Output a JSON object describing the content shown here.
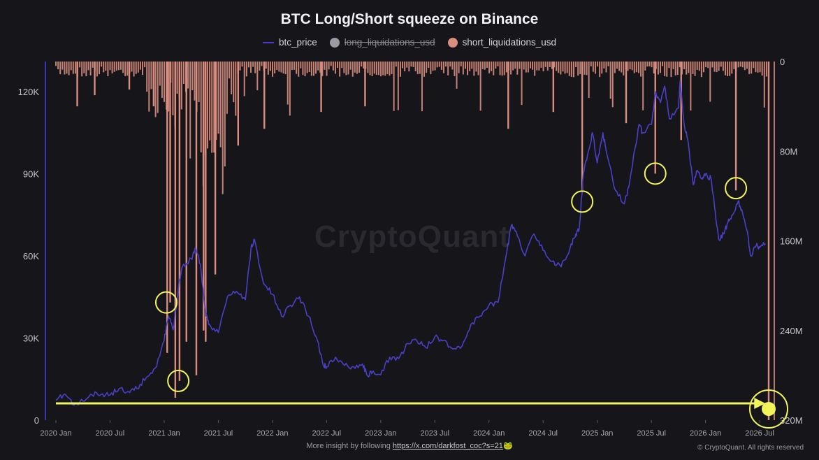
{
  "chart_data": {
    "type": "line",
    "title": "BTC Long/Short squeeze on Binance",
    "series": [
      {
        "name": "btc_price",
        "color": "#4a40c8",
        "axis": "left"
      },
      {
        "name": "long_liquidations_usd",
        "color": "#9b9ba3",
        "hidden": true
      },
      {
        "name": "short_liquidations_usd",
        "color": "#d98e80",
        "axis": "right",
        "type": "bar"
      }
    ],
    "left_axis": {
      "ticks": [
        "0",
        "30K",
        "60K",
        "90K",
        "120K"
      ],
      "values": [
        0,
        30000,
        60000,
        90000,
        120000
      ],
      "min": 0,
      "max": 131000
    },
    "right_axis": {
      "ticks": [
        "0",
        "80M",
        "160M",
        "240M",
        "320M"
      ],
      "values": [
        0,
        80,
        160,
        240,
        320
      ],
      "min": 0,
      "max": 320,
      "inverted": true
    },
    "x_axis": {
      "ticks": [
        "2020 Jan",
        "2020 Jul",
        "2021 Jan",
        "2021 Jul",
        "2022 Jan",
        "2022 Jul",
        "2023 Jan",
        "2023 Jul",
        "2024 Jan",
        "2024 Jul",
        "2025 Jan",
        "2025 Jul",
        "2026 Jan",
        "2026 Jul"
      ],
      "tick_values": [
        "2020-01",
        "2020-07",
        "2021-01",
        "2021-07",
        "2022-01",
        "2022-07",
        "2023-01",
        "2023-07",
        "2024-01",
        "2024-07",
        "2025-01",
        "2025-07",
        "2026-01",
        "2026-07"
      ],
      "min": "2020-01",
      "max": "2026-08"
    },
    "btc_price_points": [
      [
        "2020-01",
        7200
      ],
      [
        "2020-02",
        9500
      ],
      [
        "2020-03",
        5500
      ],
      [
        "2020-04",
        7000
      ],
      [
        "2020-05",
        9300
      ],
      [
        "2020-06",
        9400
      ],
      [
        "2020-07",
        9200
      ],
      [
        "2020-08",
        11500
      ],
      [
        "2020-09",
        10500
      ],
      [
        "2020-10",
        11500
      ],
      [
        "2020-11",
        15500
      ],
      [
        "2020-12",
        19000
      ],
      [
        "2021-01",
        29000
      ],
      [
        "2021-01-15",
        38000
      ],
      [
        "2021-02",
        33000
      ],
      [
        "2021-02-20",
        50000
      ],
      [
        "2021-03",
        56000
      ],
      [
        "2021-04",
        59000
      ],
      [
        "2021-04-15",
        63000
      ],
      [
        "2021-05",
        57000
      ],
      [
        "2021-05-20",
        38000
      ],
      [
        "2021-06",
        35000
      ],
      [
        "2021-07",
        32000
      ],
      [
        "2021-08",
        45000
      ],
      [
        "2021-09",
        47000
      ],
      [
        "2021-10",
        44000
      ],
      [
        "2021-10-20",
        63000
      ],
      [
        "2021-11",
        66000
      ],
      [
        "2021-12",
        50000
      ],
      [
        "2022-01",
        46000
      ],
      [
        "2022-02",
        38000
      ],
      [
        "2022-03",
        42000
      ],
      [
        "2022-04",
        45000
      ],
      [
        "2022-05",
        38000
      ],
      [
        "2022-06",
        29000
      ],
      [
        "2022-06-20",
        20000
      ],
      [
        "2022-07",
        19500
      ],
      [
        "2022-08",
        23000
      ],
      [
        "2022-09",
        20000
      ],
      [
        "2022-10",
        19500
      ],
      [
        "2022-11",
        20500
      ],
      [
        "2022-11-15",
        16500
      ],
      [
        "2022-12",
        17000
      ],
      [
        "2023-01",
        16600
      ],
      [
        "2023-02",
        23000
      ],
      [
        "2023-03",
        22500
      ],
      [
        "2023-04",
        28000
      ],
      [
        "2023-05",
        29000
      ],
      [
        "2023-06",
        26500
      ],
      [
        "2023-07",
        30500
      ],
      [
        "2023-08",
        29200
      ],
      [
        "2023-09",
        26000
      ],
      [
        "2023-10",
        27000
      ],
      [
        "2023-11",
        35000
      ],
      [
        "2023-12",
        38000
      ],
      [
        "2024-01",
        42000
      ],
      [
        "2024-02",
        43000
      ],
      [
        "2024-03",
        62000
      ],
      [
        "2024-03-15",
        71000
      ],
      [
        "2024-04",
        69000
      ],
      [
        "2024-05",
        60000
      ],
      [
        "2024-06",
        68000
      ],
      [
        "2024-07",
        62000
      ],
      [
        "2024-08",
        58000
      ],
      [
        "2024-09",
        56000
      ],
      [
        "2024-10",
        63000
      ],
      [
        "2024-10-20",
        68000
      ],
      [
        "2024-11",
        70000
      ],
      [
        "2024-11-15",
        90000
      ],
      [
        "2024-12",
        98000
      ],
      [
        "2024-12-15",
        105000
      ],
      [
        "2025-01",
        94000
      ],
      [
        "2025-01-20",
        105000
      ],
      [
        "2025-02",
        98000
      ],
      [
        "2025-03",
        84000
      ],
      [
        "2025-04",
        79000
      ],
      [
        "2025-04-15",
        85000
      ],
      [
        "2025-05",
        96000
      ],
      [
        "2025-05-20",
        108000
      ],
      [
        "2025-06",
        105000
      ],
      [
        "2025-07",
        108000
      ],
      [
        "2025-07-15",
        120000
      ],
      [
        "2025-08",
        116000
      ],
      [
        "2025-08-15",
        122000
      ],
      [
        "2025-09",
        110000
      ],
      [
        "2025-10",
        114000
      ],
      [
        "2025-10-07",
        124000
      ],
      [
        "2025-10-20",
        108000
      ],
      [
        "2025-11",
        103000
      ],
      [
        "2025-11-20",
        86000
      ],
      [
        "2025-12",
        91000
      ],
      [
        "2025-12-20",
        88000
      ],
      [
        "2026-01",
        90000
      ],
      [
        "2026-01-20",
        88000
      ],
      [
        "2026-02",
        78000
      ],
      [
        "2026-02-15",
        66000
      ],
      [
        "2026-03",
        68000
      ],
      [
        "2026-03-15",
        72000
      ],
      [
        "2026-04",
        75000
      ],
      [
        "2026-04-20",
        80000
      ],
      [
        "2026-05",
        77000
      ],
      [
        "2026-05-20",
        69000
      ],
      [
        "2026-06",
        60000
      ],
      [
        "2026-06-20",
        64000
      ],
      [
        "2026-07",
        63000
      ],
      [
        "2026-07-20",
        64500
      ]
    ],
    "short_liquidation_spikes": [
      [
        "2020-03-12",
        40
      ],
      [
        "2020-05-10",
        30
      ],
      [
        "2020-09-05",
        25
      ],
      [
        "2020-11-26",
        40
      ],
      [
        "2021-01-11",
        260
      ],
      [
        "2021-01-21",
        215
      ],
      [
        "2021-02-08",
        300
      ],
      [
        "2021-02-22",
        285
      ],
      [
        "2021-03-15",
        250
      ],
      [
        "2021-04-18",
        280
      ],
      [
        "2021-05-12",
        240
      ],
      [
        "2021-05-19",
        250
      ],
      [
        "2021-06-21",
        190
      ],
      [
        "2021-09-07",
        75
      ],
      [
        "2021-12-04",
        60
      ],
      [
        "2022-06-13",
        45
      ],
      [
        "2022-11-09",
        40
      ],
      [
        "2024-03-05",
        60
      ],
      [
        "2024-08-05",
        45
      ],
      [
        "2024-11-11",
        115
      ],
      [
        "2025-04-07",
        55
      ],
      [
        "2025-07-14",
        100
      ],
      [
        "2025-10-10",
        70
      ],
      [
        "2026-04-12",
        115
      ],
      [
        "2026-08-01",
        320
      ]
    ],
    "annotations": [
      {
        "type": "circle",
        "date": "2021-01-08",
        "value_right": 215,
        "color": "#f2f55a"
      },
      {
        "type": "circle",
        "date": "2021-02-18",
        "value_right": 285,
        "color": "#f2f55a"
      },
      {
        "type": "circle",
        "date": "2024-11-11",
        "value_right": 125,
        "color": "#f2f55a"
      },
      {
        "type": "circle",
        "date": "2025-07-14",
        "value_right": 100,
        "color": "#f2f55a"
      },
      {
        "type": "circle",
        "date": "2026-04-12",
        "value_right": 113,
        "color": "#f2f55a"
      },
      {
        "type": "circle",
        "date": "2026-08-01",
        "value_right": 310,
        "color": "#f2f55a",
        "filled": true
      },
      {
        "type": "arrow",
        "from": "2020-01",
        "to": "2026-07-20",
        "value_right": 305,
        "color": "#f2f55a"
      }
    ]
  },
  "watermark": "CryptoQuant",
  "footer": {
    "text": "More insight by following",
    "link": "https://x.com/darkfost_coc?s=21",
    "emoji": "🐸",
    "credit": "© CryptoQuant. All rights reserved"
  }
}
